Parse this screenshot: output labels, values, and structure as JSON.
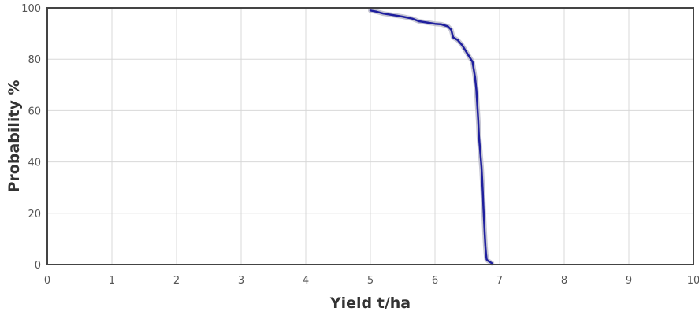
{
  "chart_data": {
    "type": "line",
    "title": "",
    "xlabel": "Yield t/ha",
    "ylabel": "Probability %",
    "xlim": [
      0,
      10
    ],
    "ylim": [
      0,
      100
    ],
    "x_ticks": [
      0,
      1,
      2,
      3,
      4,
      5,
      6,
      7,
      8,
      9,
      10
    ],
    "y_ticks": [
      0,
      20,
      40,
      60,
      80,
      100
    ],
    "grid": true,
    "legend": "none",
    "colors": {
      "series": "#1f1f9e",
      "band": "#b8b8c8",
      "frame": "#444444",
      "grid": "#d8d8d8"
    },
    "series": [
      {
        "x": [
          5.0,
          5.1,
          5.2,
          5.35,
          5.5,
          5.65,
          5.75,
          5.9,
          6.0,
          6.1,
          6.2,
          6.25,
          6.28,
          6.35,
          6.42,
          6.48,
          6.53,
          6.58,
          6.6,
          6.62,
          6.64,
          6.65,
          6.66,
          6.67,
          6.68,
          6.7,
          6.72,
          6.73,
          6.74,
          6.75,
          6.76,
          6.77,
          6.78,
          6.79,
          6.8,
          6.82,
          6.85,
          6.88
        ],
        "y": [
          99,
          98.5,
          97.8,
          97.2,
          96.6,
          95.8,
          94.8,
          94.2,
          93.8,
          93.6,
          92.8,
          91.5,
          88.5,
          87.5,
          85.5,
          83,
          81,
          79,
          76,
          73,
          68,
          64,
          60,
          56,
          50,
          44,
          38,
          33,
          28,
          22,
          17,
          12,
          7,
          4,
          2,
          1.5,
          1,
          0.5
        ]
      }
    ]
  }
}
